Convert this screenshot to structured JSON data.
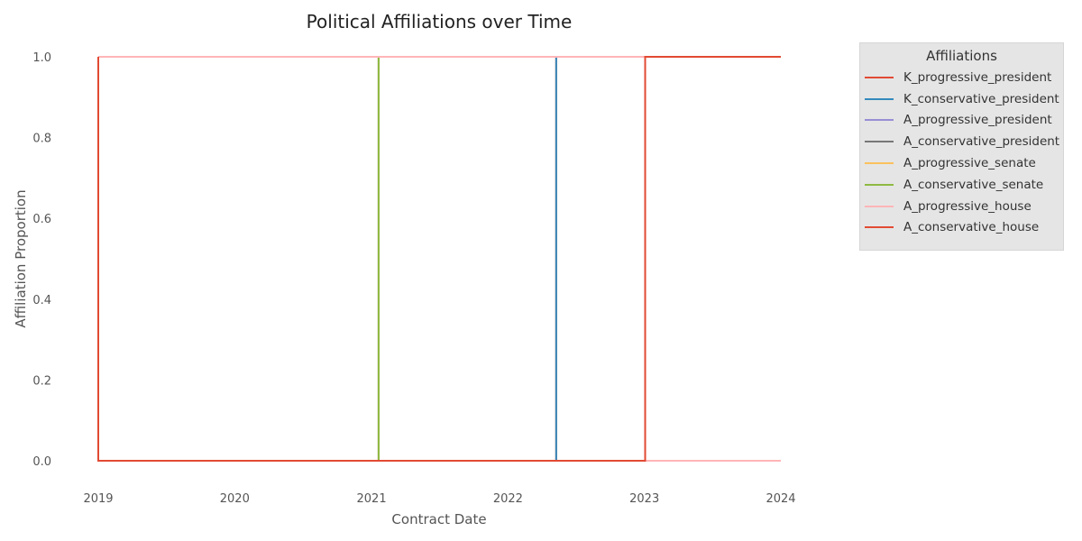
{
  "chart_data": {
    "type": "line",
    "title": "Political Affiliations over Time",
    "xlabel": "Contract Date",
    "ylabel": "Affiliation Proportion",
    "x_ticks": [
      "2019",
      "2020",
      "2021",
      "2022",
      "2023",
      "2024"
    ],
    "y_ticks": [
      "0.0",
      "0.2",
      "0.4",
      "0.6",
      "0.8",
      "1.0"
    ],
    "xlim": [
      "2019-01-01",
      "2024-01-01"
    ],
    "ylim": [
      0,
      1
    ],
    "grid": false,
    "legend": {
      "title": "Affiliations",
      "placement": "outside-top-right"
    },
    "series": [
      {
        "name": "K_progressive_president",
        "color": "#e24a33",
        "x": [
          "2019-01-01",
          "2022-05-10",
          "2022-05-10",
          "2024-01-01"
        ],
        "y": [
          1,
          1,
          0,
          0
        ]
      },
      {
        "name": "K_conservative_president",
        "color": "#348abd",
        "x": [
          "2019-01-01",
          "2022-05-10",
          "2022-05-10",
          "2024-01-01"
        ],
        "y": [
          0,
          0,
          1,
          1
        ]
      },
      {
        "name": "A_progressive_president",
        "color": "#988ed5",
        "x": [
          "2019-01-01",
          "2021-01-20",
          "2021-01-20",
          "2024-01-01"
        ],
        "y": [
          0,
          0,
          1,
          1
        ]
      },
      {
        "name": "A_conservative_president",
        "color": "#777777",
        "x": [
          "2019-01-01",
          "2021-01-20",
          "2021-01-20",
          "2024-01-01"
        ],
        "y": [
          1,
          1,
          0,
          0
        ]
      },
      {
        "name": "A_progressive_senate",
        "color": "#fbc15e",
        "x": [
          "2019-01-01",
          "2021-01-20",
          "2021-01-20",
          "2024-01-01"
        ],
        "y": [
          0,
          0,
          1,
          1
        ]
      },
      {
        "name": "A_conservative_senate",
        "color": "#8eba42",
        "x": [
          "2019-01-01",
          "2021-01-20",
          "2021-01-20",
          "2024-01-01"
        ],
        "y": [
          1,
          1,
          0,
          0
        ]
      },
      {
        "name": "A_progressive_house",
        "color": "#ffb5b8",
        "x": [
          "2019-01-01",
          "2023-01-03",
          "2023-01-03",
          "2024-01-01"
        ],
        "y": [
          1,
          1,
          0,
          0
        ]
      },
      {
        "name": "A_conservative_house",
        "color": "#e24a33",
        "x": [
          "2019-01-01",
          "2019-01-01",
          "2023-01-03",
          "2023-01-03",
          "2024-01-01"
        ],
        "y": [
          1,
          0,
          0,
          1,
          1
        ]
      }
    ]
  }
}
